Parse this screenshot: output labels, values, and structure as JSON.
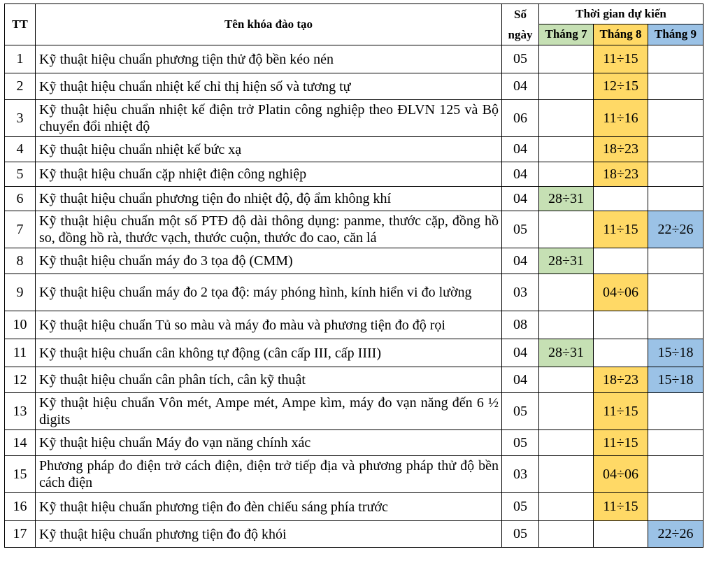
{
  "headers": {
    "tt": "TT",
    "course": "Tên khóa đào tạo",
    "days_line1": "Số",
    "days_line2": "ngày",
    "schedule": "Thời gian dự kiến",
    "months": [
      "Tháng 7",
      "Tháng 8",
      "Tháng 9"
    ]
  },
  "colors": {
    "thang7": "#c6e0b4",
    "thang8": "#ffd966",
    "thang9": "#9bc2e6"
  },
  "rows": [
    {
      "tt": "1",
      "name": "Kỹ thuật hiệu chuẩn phương tiện thử độ bền kéo nén",
      "days": "05",
      "m7": "",
      "m8": "11÷15",
      "m9": ""
    },
    {
      "tt": "2",
      "name": "Kỹ thuật hiệu chuẩn nhiệt kế chỉ thị hiện số và tương tự",
      "days": "04",
      "m7": "",
      "m8": "12÷15",
      "m9": ""
    },
    {
      "tt": "3",
      "name": "Kỹ thuật hiệu chuẩn nhiệt kế điện trở Platin công nghiệp theo ĐLVN 125 và Bộ chuyển đổi nhiệt độ",
      "days": "06",
      "m7": "",
      "m8": "11÷16",
      "m9": ""
    },
    {
      "tt": "4",
      "name": "Kỹ thuật hiệu chuẩn nhiệt kế bức xạ",
      "days": "04",
      "m7": "",
      "m8": "18÷23",
      "m9": ""
    },
    {
      "tt": "5",
      "name": "Kỹ thuật hiệu chuẩn cặp nhiệt điện công nghiệp",
      "days": "04",
      "m7": "",
      "m8": "18÷23",
      "m9": ""
    },
    {
      "tt": "6",
      "name": "Kỹ thuật hiệu chuẩn phương tiện đo nhiệt độ, độ ẩm không khí",
      "days": "04",
      "m7": "28÷31",
      "m8": "",
      "m9": ""
    },
    {
      "tt": "7",
      "name": "Kỹ thuật hiệu chuẩn một số PTĐ độ dài thông dụng: panme, thước cặp, đồng hồ so, đồng hồ rà, thước vạch, thước cuộn, thước đo cao, căn lá",
      "days": "05",
      "m7": "",
      "m8": "11÷15",
      "m9": "22÷26"
    },
    {
      "tt": "8",
      "name": "Kỹ thuật hiệu chuẩn máy đo 3 tọa độ (CMM)",
      "days": "04",
      "m7": "28÷31",
      "m8": "",
      "m9": ""
    },
    {
      "tt": "9",
      "name": "Kỹ thuật hiệu chuẩn máy đo 2 tọa độ: máy phóng hình, kính hiển vi đo lường",
      "days": "03",
      "m7": "",
      "m8": "04÷06",
      "m9": ""
    },
    {
      "tt": "10",
      "name": "Kỹ thuật hiệu chuẩn Tủ so màu và máy đo màu và phương tiện đo độ rọi",
      "days": "08",
      "m7": "",
      "m8": "",
      "m9": ""
    },
    {
      "tt": "11",
      "name": "Kỹ thuật hiệu chuẩn cân không tự động (cân cấp III, cấp IIII)",
      "days": "04",
      "m7": "28÷31",
      "m8": "",
      "m9": "15÷18"
    },
    {
      "tt": "12",
      "name": "Kỹ thuật hiệu chuẩn cân phân tích, cân kỹ thuật",
      "days": "04",
      "m7": "",
      "m8": "18÷23",
      "m9": "15÷18"
    },
    {
      "tt": "13",
      "name": "Kỹ thuật hiệu chuẩn Vôn mét, Ampe mét, Ampe kìm, máy đo vạn năng đến 6 ½ digits",
      "days": "05",
      "m7": "",
      "m8": "11÷15",
      "m9": ""
    },
    {
      "tt": "14",
      "name": "Kỹ thuật hiệu chuẩn Máy đo vạn năng chính xác",
      "days": "05",
      "m7": "",
      "m8": "11÷15",
      "m9": ""
    },
    {
      "tt": "15",
      "name": "Phương pháp đo điện trở cách điện, điện trở tiếp địa và phương pháp thử độ bền cách điện",
      "days": "03",
      "m7": "",
      "m8": "04÷06",
      "m9": ""
    },
    {
      "tt": "16",
      "name": "Kỹ thuật hiệu chuẩn phương tiện đo đèn chiếu sáng phía trước",
      "days": "05",
      "m7": "",
      "m8": "11÷15",
      "m9": ""
    },
    {
      "tt": "17",
      "name": "Kỹ thuật hiệu chuẩn phương tiện đo độ khói",
      "days": "05",
      "m7": "",
      "m8": "",
      "m9": "22÷26"
    }
  ]
}
